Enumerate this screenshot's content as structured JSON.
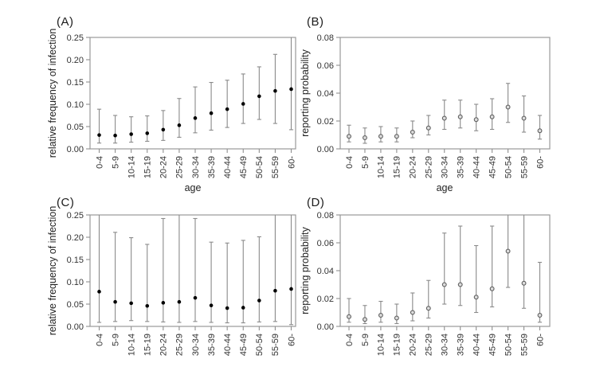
{
  "background": "#ffffff",
  "colors": {
    "frame": "#999999",
    "tick": "#8f8f8f",
    "error_bar": "#8a8a8a",
    "point_filled": "#000000",
    "point_open_stroke": "#5f5f5f",
    "point_open_fill": "#dcdcdc",
    "tick_text": "#333333"
  },
  "chart_data": [
    {
      "type": "scatter",
      "label": "(A)",
      "ylabel": "relative frequency of infection",
      "xlabel": "age",
      "marker": "filled",
      "ylim": [
        0,
        0.25
      ],
      "yticks": [
        "0.00",
        "0.05",
        "0.10",
        "0.15",
        "0.20",
        "0.25"
      ],
      "grid": false,
      "categories": [
        "0-4",
        "5-9",
        "10-14",
        "15-19",
        "20-24",
        "25-29",
        "30-34",
        "35-39",
        "40-44",
        "45-49",
        "50-54",
        "55-59",
        "60-"
      ],
      "values": [
        0.031,
        0.03,
        0.033,
        0.035,
        0.043,
        0.053,
        0.069,
        0.08,
        0.089,
        0.101,
        0.118,
        0.13,
        0.134
      ],
      "lower": [
        0.013,
        0.013,
        0.015,
        0.017,
        0.019,
        0.026,
        0.036,
        0.042,
        0.048,
        0.057,
        0.066,
        0.057,
        0.043
      ],
      "upper": [
        0.089,
        0.075,
        0.072,
        0.074,
        0.086,
        0.113,
        0.139,
        0.149,
        0.154,
        0.168,
        0.184,
        0.212,
        0.252
      ]
    },
    {
      "type": "scatter",
      "label": "(B)",
      "ylabel": "reporting probability",
      "xlabel": "age",
      "marker": "open",
      "ylim": [
        0,
        0.08
      ],
      "yticks": [
        "0.00",
        "0.02",
        "0.04",
        "0.06",
        "0.08"
      ],
      "grid": false,
      "categories": [
        "0-4",
        "5-9",
        "10-14",
        "15-19",
        "20-24",
        "25-29",
        "30-34",
        "35-39",
        "40-44",
        "45-49",
        "50-54",
        "55-59",
        "60-"
      ],
      "values": [
        0.009,
        0.008,
        0.009,
        0.009,
        0.012,
        0.015,
        0.022,
        0.023,
        0.021,
        0.023,
        0.03,
        0.022,
        0.013
      ],
      "lower": [
        0.005,
        0.004,
        0.005,
        0.005,
        0.008,
        0.01,
        0.014,
        0.015,
        0.013,
        0.014,
        0.019,
        0.012,
        0.007
      ],
      "upper": [
        0.017,
        0.015,
        0.016,
        0.015,
        0.02,
        0.024,
        0.035,
        0.035,
        0.032,
        0.036,
        0.047,
        0.038,
        0.024
      ]
    },
    {
      "type": "scatter",
      "label": "(C)",
      "ylabel": "relative frequency of infection",
      "marker": "filled",
      "ylim": [
        0,
        0.25
      ],
      "yticks": [
        "0.00",
        "0.05",
        "0.10",
        "0.15",
        "0.20",
        "0.25"
      ],
      "grid": false,
      "categories": [
        "0-4",
        "5-9",
        "10-14",
        "15-19",
        "20-24",
        "25-29",
        "30-34",
        "35-39",
        "40-44",
        "45-49",
        "50-54",
        "55-59",
        "60-"
      ],
      "values": [
        0.078,
        0.055,
        0.052,
        0.046,
        0.053,
        0.055,
        0.064,
        0.047,
        0.041,
        0.042,
        0.058,
        0.08,
        0.084
      ],
      "lower": [
        0.009,
        0.011,
        0.013,
        0.011,
        0.01,
        0.009,
        0.011,
        0.009,
        0.008,
        0.008,
        0.01,
        0.011,
        0.004
      ],
      "upper": [
        0.26,
        0.211,
        0.199,
        0.184,
        0.242,
        0.26,
        0.242,
        0.189,
        0.187,
        0.193,
        0.201,
        0.26,
        0.26
      ]
    },
    {
      "type": "scatter",
      "label": "(D)",
      "ylabel": "reporting probability",
      "marker": "open",
      "ylim": [
        0,
        0.08
      ],
      "yticks": [
        "0.00",
        "0.02",
        "0.04",
        "0.06",
        "0.08"
      ],
      "grid": false,
      "categories": [
        "0-4",
        "5-9",
        "10-14",
        "15-19",
        "20-24",
        "25-29",
        "30-34",
        "35-39",
        "40-44",
        "45-49",
        "50-54",
        "55-59",
        "60-"
      ],
      "values": [
        0.007,
        0.005,
        0.008,
        0.006,
        0.01,
        0.013,
        0.03,
        0.03,
        0.021,
        0.027,
        0.054,
        0.031,
        0.008
      ],
      "lower": [
        0.003,
        0.002,
        0.003,
        0.002,
        0.004,
        0.006,
        0.016,
        0.015,
        0.01,
        0.014,
        0.028,
        0.013,
        0.003
      ],
      "upper": [
        0.02,
        0.015,
        0.018,
        0.016,
        0.024,
        0.033,
        0.067,
        0.072,
        0.058,
        0.072,
        0.085,
        0.085,
        0.046
      ]
    }
  ]
}
